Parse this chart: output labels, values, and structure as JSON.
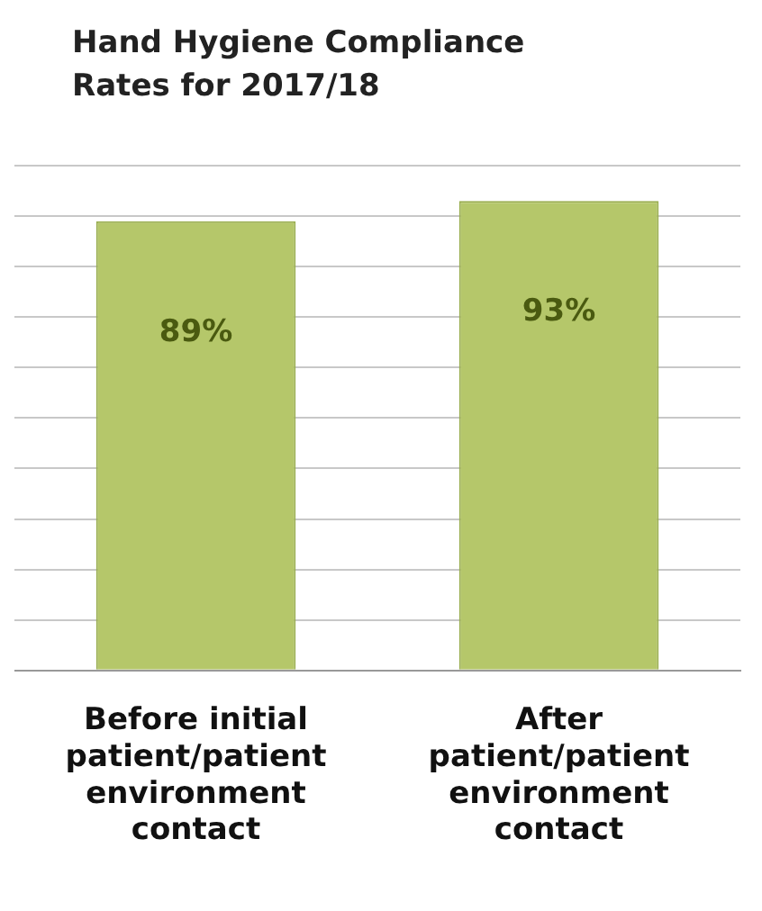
{
  "chart_data": {
    "type": "bar",
    "title": "Hand Hygiene Compliance Rates for 2017/18",
    "categories": [
      "Before initial patient/patient environment contact",
      "After patient/patient environment contact"
    ],
    "values": [
      89,
      93
    ],
    "color": "#b5c76a",
    "value_labels": [
      "89%",
      "93%"
    ],
    "ylim": [
      0,
      100
    ],
    "yticks": [
      {
        "value": 0,
        "label": null
      },
      {
        "value": 10,
        "label": null
      },
      {
        "value": 20,
        "label": null
      },
      {
        "value": 30,
        "label": null
      },
      {
        "value": 40,
        "label": null
      },
      {
        "value": 50,
        "label": null
      },
      {
        "value": 60,
        "label": null
      },
      {
        "value": 70,
        "label": null
      },
      {
        "value": 80,
        "label": null
      },
      {
        "value": 90,
        "label": null
      },
      {
        "value": 100,
        "label": null
      }
    ],
    "tick_labels": "x",
    "grid": "y",
    "legend": false
  }
}
